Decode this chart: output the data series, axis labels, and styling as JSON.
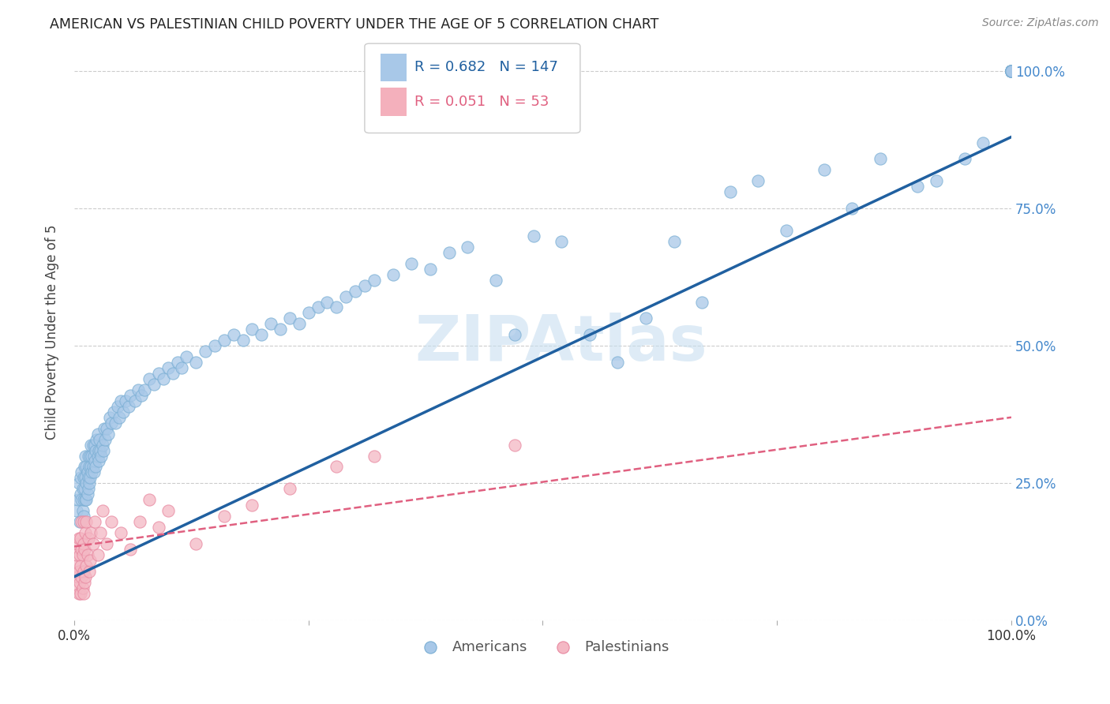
{
  "title": "AMERICAN VS PALESTINIAN CHILD POVERTY UNDER THE AGE OF 5 CORRELATION CHART",
  "source": "Source: ZipAtlas.com",
  "ylabel": "Child Poverty Under the Age of 5",
  "legend_americans": "Americans",
  "legend_palestinians": "Palestinians",
  "legend_r_american": "0.682",
  "legend_n_american": "147",
  "legend_r_palestinian": "0.051",
  "legend_n_palestinian": "53",
  "watermark": "ZIPAtlas",
  "blue_color": "#a8c8e8",
  "blue_edge_color": "#7bafd4",
  "blue_line_color": "#2060a0",
  "pink_color": "#f4b8c4",
  "pink_edge_color": "#e888a0",
  "pink_line_color": "#e06080",
  "blue_legend_box": "#a8c8e8",
  "pink_legend_box": "#f4b0bc",
  "blue_text_color": "#2060a0",
  "pink_text_color": "#e06080",
  "right_tick_color": "#4488cc",
  "americans_x": [
    0.003,
    0.004,
    0.005,
    0.006,
    0.007,
    0.007,
    0.008,
    0.008,
    0.009,
    0.009,
    0.01,
    0.01,
    0.01,
    0.011,
    0.011,
    0.012,
    0.012,
    0.012,
    0.013,
    0.013,
    0.013,
    0.014,
    0.014,
    0.015,
    0.015,
    0.015,
    0.016,
    0.016,
    0.017,
    0.017,
    0.018,
    0.018,
    0.019,
    0.019,
    0.02,
    0.02,
    0.021,
    0.021,
    0.022,
    0.022,
    0.023,
    0.023,
    0.024,
    0.025,
    0.025,
    0.026,
    0.026,
    0.027,
    0.028,
    0.029,
    0.03,
    0.031,
    0.032,
    0.033,
    0.035,
    0.036,
    0.038,
    0.04,
    0.042,
    0.044,
    0.046,
    0.048,
    0.05,
    0.052,
    0.055,
    0.058,
    0.06,
    0.065,
    0.068,
    0.072,
    0.075,
    0.08,
    0.085,
    0.09,
    0.095,
    0.1,
    0.105,
    0.11,
    0.115,
    0.12,
    0.13,
    0.14,
    0.15,
    0.16,
    0.17,
    0.18,
    0.19,
    0.2,
    0.21,
    0.22,
    0.23,
    0.24,
    0.25,
    0.26,
    0.27,
    0.28,
    0.29,
    0.3,
    0.31,
    0.32,
    0.34,
    0.36,
    0.38,
    0.4,
    0.42,
    0.45,
    0.47,
    0.49,
    0.52,
    0.55,
    0.58,
    0.61,
    0.64,
    0.67,
    0.7,
    0.73,
    0.76,
    0.8,
    0.83,
    0.86,
    0.9,
    0.92,
    0.95,
    0.97,
    1.0,
    1.0,
    1.0,
    1.0,
    1.0,
    1.0,
    1.0,
    1.0,
    1.0,
    1.0,
    1.0,
    1.0,
    1.0,
    1.0,
    1.0,
    1.0,
    1.0,
    1.0,
    1.0,
    1.0,
    1.0,
    1.0,
    1.0
  ],
  "americans_y": [
    0.2,
    0.22,
    0.25,
    0.18,
    0.23,
    0.26,
    0.22,
    0.27,
    0.2,
    0.24,
    0.26,
    0.22,
    0.19,
    0.28,
    0.24,
    0.26,
    0.22,
    0.3,
    0.25,
    0.28,
    0.22,
    0.27,
    0.23,
    0.3,
    0.26,
    0.24,
    0.28,
    0.25,
    0.3,
    0.26,
    0.28,
    0.32,
    0.27,
    0.3,
    0.28,
    0.32,
    0.3,
    0.27,
    0.32,
    0.29,
    0.31,
    0.28,
    0.33,
    0.3,
    0.34,
    0.31,
    0.29,
    0.33,
    0.31,
    0.3,
    0.32,
    0.31,
    0.35,
    0.33,
    0.35,
    0.34,
    0.37,
    0.36,
    0.38,
    0.36,
    0.39,
    0.37,
    0.4,
    0.38,
    0.4,
    0.39,
    0.41,
    0.4,
    0.42,
    0.41,
    0.42,
    0.44,
    0.43,
    0.45,
    0.44,
    0.46,
    0.45,
    0.47,
    0.46,
    0.48,
    0.47,
    0.49,
    0.5,
    0.51,
    0.52,
    0.51,
    0.53,
    0.52,
    0.54,
    0.53,
    0.55,
    0.54,
    0.56,
    0.57,
    0.58,
    0.57,
    0.59,
    0.6,
    0.61,
    0.62,
    0.63,
    0.65,
    0.64,
    0.67,
    0.68,
    0.62,
    0.52,
    0.7,
    0.69,
    0.52,
    0.47,
    0.55,
    0.69,
    0.58,
    0.78,
    0.8,
    0.71,
    0.82,
    0.75,
    0.84,
    0.79,
    0.8,
    0.84,
    0.87,
    1.0,
    1.0,
    1.0,
    1.0,
    1.0,
    1.0,
    1.0,
    1.0,
    1.0,
    1.0,
    1.0,
    1.0,
    1.0,
    1.0,
    1.0,
    1.0,
    1.0,
    1.0,
    1.0,
    1.0,
    1.0,
    1.0,
    1.0
  ],
  "palestinians_x": [
    0.002,
    0.003,
    0.003,
    0.004,
    0.004,
    0.005,
    0.005,
    0.005,
    0.006,
    0.006,
    0.007,
    0.007,
    0.007,
    0.008,
    0.008,
    0.008,
    0.009,
    0.009,
    0.01,
    0.01,
    0.01,
    0.01,
    0.011,
    0.011,
    0.012,
    0.012,
    0.013,
    0.013,
    0.014,
    0.015,
    0.016,
    0.017,
    0.018,
    0.02,
    0.022,
    0.025,
    0.028,
    0.03,
    0.035,
    0.04,
    0.05,
    0.06,
    0.07,
    0.08,
    0.09,
    0.1,
    0.13,
    0.16,
    0.19,
    0.23,
    0.28,
    0.32,
    0.47
  ],
  "palestinians_y": [
    0.1,
    0.06,
    0.12,
    0.08,
    0.14,
    0.05,
    0.09,
    0.15,
    0.07,
    0.12,
    0.05,
    0.1,
    0.15,
    0.08,
    0.13,
    0.18,
    0.06,
    0.12,
    0.05,
    0.09,
    0.14,
    0.18,
    0.07,
    0.13,
    0.08,
    0.16,
    0.1,
    0.18,
    0.12,
    0.15,
    0.09,
    0.11,
    0.16,
    0.14,
    0.18,
    0.12,
    0.16,
    0.2,
    0.14,
    0.18,
    0.16,
    0.13,
    0.18,
    0.22,
    0.17,
    0.2,
    0.14,
    0.19,
    0.21,
    0.24,
    0.28,
    0.3,
    0.32
  ],
  "blue_trend_x0": 0.0,
  "blue_trend_x1": 1.0,
  "blue_trend_y0": 0.08,
  "blue_trend_y1": 0.88,
  "pink_trend_x0": 0.0,
  "pink_trend_x1": 1.0,
  "pink_trend_y0": 0.135,
  "pink_trend_y1": 0.37,
  "xlim": [
    0.0,
    1.0
  ],
  "ylim": [
    0.0,
    1.05
  ],
  "background_color": "#ffffff",
  "grid_color": "#cccccc",
  "grid_style": "--"
}
